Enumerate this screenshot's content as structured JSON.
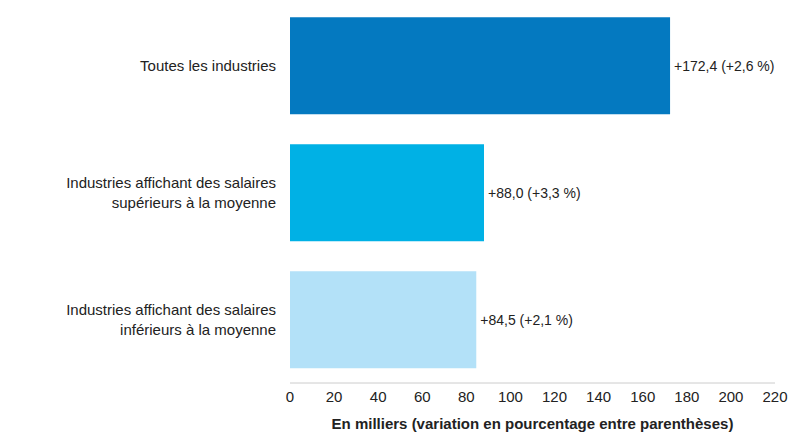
{
  "chart_data": {
    "type": "bar",
    "orientation": "horizontal",
    "categories": [
      "Toutes les industries",
      "Industries affichant des salaires supérieurs à la moyenne",
      "Industries affichant des salaires inférieurs à la moyenne"
    ],
    "values": [
      172.4,
      88.0,
      84.5
    ],
    "value_labels": [
      "+172,4 (+2,6 %)",
      "+88,0 (+3,3 %)",
      "+84,5 (+2,1 %)"
    ],
    "colors": [
      "#0479c0",
      "#00b1e5",
      "#b3e1f8"
    ],
    "x_label": "En milliers (variation en pourcentage entre parenthèses)",
    "xlim": [
      0,
      220
    ],
    "xticks": [
      0,
      20,
      40,
      60,
      80,
      100,
      120,
      140,
      160,
      180,
      200,
      220
    ],
    "grid": false,
    "data_labels": true
  }
}
